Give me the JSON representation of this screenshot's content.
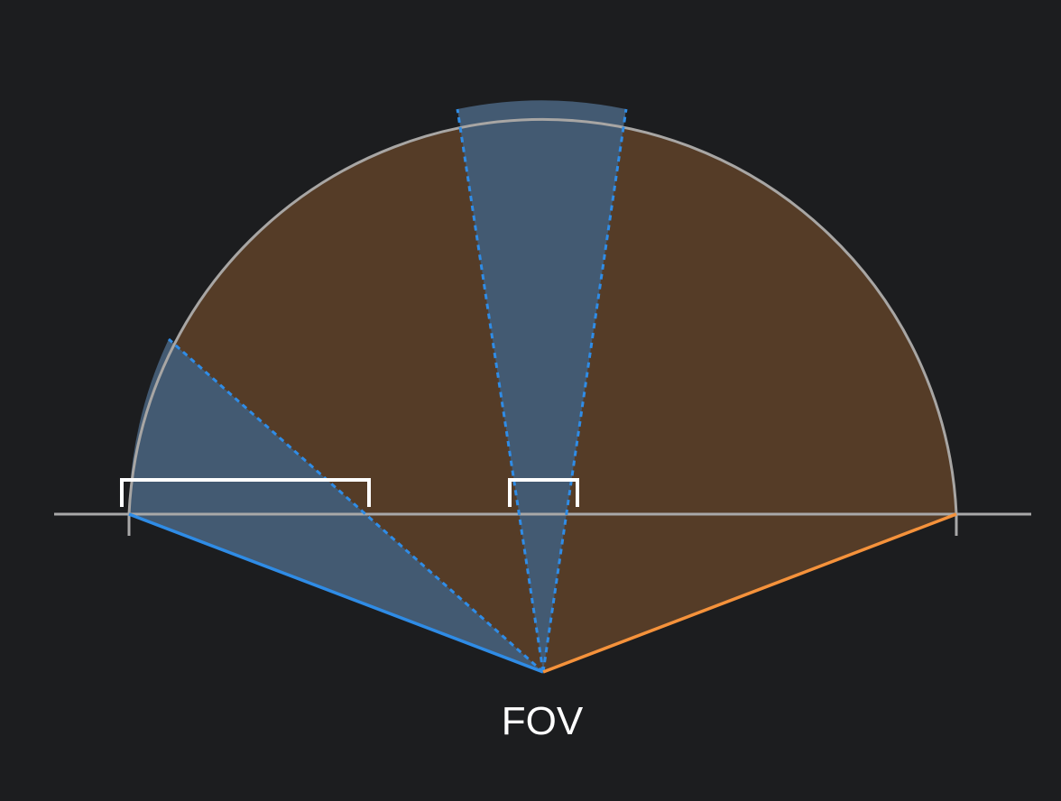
{
  "label": "FOV",
  "colors": {
    "background": "#1c1d1f",
    "wide_fill": "#553c27",
    "narrow_fill": "#435a72",
    "blue": "#2f8ce6",
    "orange": "#f5923b",
    "arc": "#a8a6a4",
    "baseline": "#a8a8a8",
    "bracket": "#ffffff",
    "text": "#ffffff"
  }
}
